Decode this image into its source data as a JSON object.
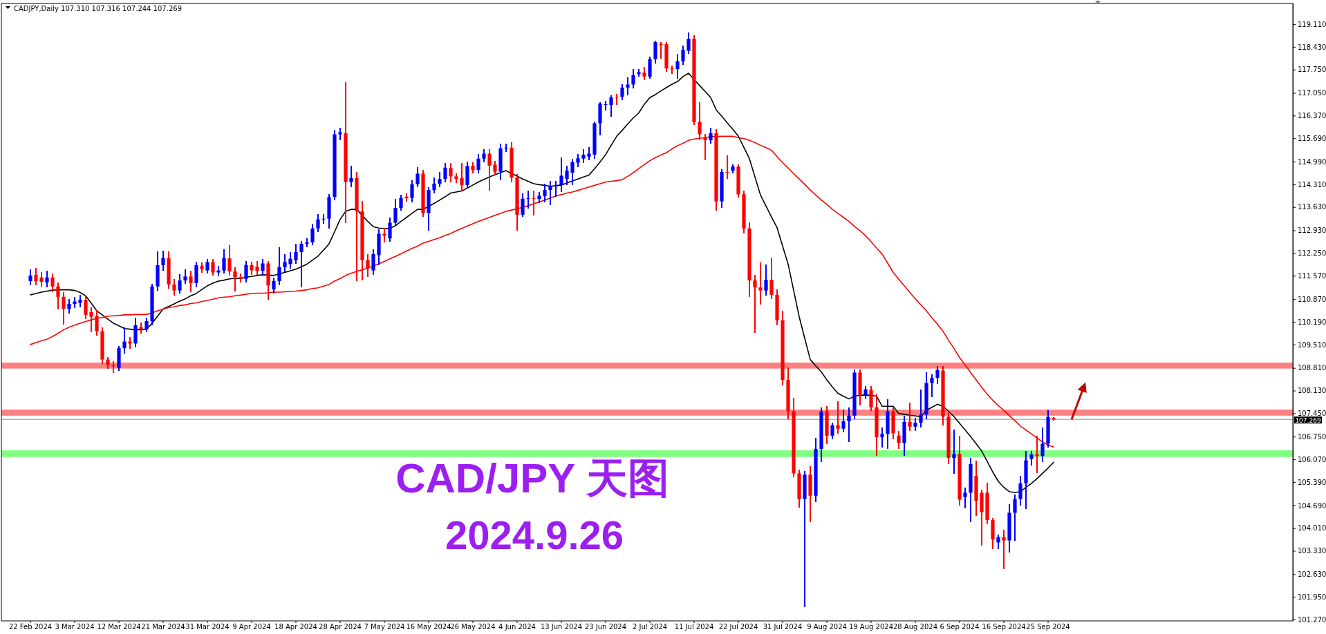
{
  "chart_data": {
    "type": "candlestick",
    "title": "CAD/JPY 天图",
    "subtitle": "2024.9.26",
    "annotations": [
      "CADJPY,Daily 107.310 107.316 107.244 107.269"
    ],
    "categories": [
      "22 Feb 2024",
      null,
      null,
      null,
      null,
      null,
      null,
      null,
      "3 Mar 2024",
      null,
      null,
      null,
      null,
      null,
      null,
      null,
      "12 Mar 2024",
      null,
      null,
      null,
      null,
      null,
      null,
      null,
      "21 Mar 2024",
      null,
      null,
      null,
      null,
      null,
      null,
      null,
      "31 Mar 2024",
      null,
      null,
      null,
      null,
      null,
      null,
      null,
      "9 Apr 2024",
      null,
      null,
      null,
      null,
      null,
      null,
      null,
      "18 Apr 2024",
      null,
      null,
      null,
      null,
      null,
      null,
      null,
      "28 Apr 2024",
      null,
      null,
      null,
      null,
      null,
      null,
      null,
      "7 May 2024",
      null,
      null,
      null,
      null,
      null,
      null,
      null,
      "16 May 2024",
      null,
      null,
      null,
      null,
      null,
      null,
      null,
      "26 May 2024",
      null,
      null,
      null,
      null,
      null,
      null,
      null,
      "4 Jun 2024",
      null,
      null,
      null,
      null,
      null,
      null,
      null,
      "13 Jun 2024",
      null,
      null,
      null,
      null,
      null,
      null,
      null,
      "23 Jun 2024",
      null,
      null,
      null,
      null,
      null,
      null,
      null,
      "2 Jul 2024",
      null,
      null,
      null,
      null,
      null,
      null,
      null,
      "11 Jul 2024",
      null,
      null,
      null,
      null,
      null,
      null,
      null,
      "22 Jul 2024",
      null,
      null,
      null,
      null,
      null,
      null,
      null,
      "31 Jul 2024",
      null,
      null,
      null,
      null,
      null,
      null,
      null,
      "9 Aug 2024",
      null,
      null,
      null,
      null,
      null,
      null,
      null,
      "19 Aug 2024",
      null,
      null,
      null,
      null,
      null,
      null,
      null,
      "28 Aug 2024",
      null,
      null,
      null,
      null,
      null,
      null,
      null,
      "6 Sep 2024",
      null,
      null,
      null,
      null,
      null,
      null,
      null,
      "16 Sep 2024",
      null,
      null,
      null,
      null,
      null,
      null,
      null,
      "25 Sep 2024",
      null
    ],
    "ohlc": [
      [
        111.41,
        111.75,
        111.3,
        111.58
      ],
      [
        111.6,
        111.78,
        111.3,
        111.41
      ],
      [
        111.52,
        111.65,
        111.25,
        111.39
      ],
      [
        111.37,
        111.7,
        111.25,
        111.52
      ],
      [
        111.52,
        111.62,
        111.1,
        111.25
      ],
      [
        111.25,
        111.35,
        110.58,
        110.94
      ],
      [
        110.94,
        111.05,
        110.13,
        110.58
      ],
      [
        110.58,
        110.85,
        110.45,
        110.73
      ],
      [
        110.73,
        110.92,
        110.62,
        110.8
      ],
      [
        110.76,
        110.98,
        110.65,
        110.85
      ],
      [
        110.85,
        110.95,
        110.3,
        110.4
      ],
      [
        110.48,
        110.6,
        109.91,
        110.34
      ],
      [
        110.36,
        110.55,
        109.8,
        109.91
      ],
      [
        109.91,
        110.0,
        108.95,
        109.06
      ],
      [
        109.06,
        109.12,
        108.8,
        108.9
      ],
      [
        108.9,
        109.0,
        108.69,
        108.86
      ],
      [
        108.81,
        109.45,
        108.75,
        109.4
      ],
      [
        109.4,
        110.0,
        109.25,
        109.6
      ],
      [
        109.6,
        109.72,
        109.4,
        109.54
      ],
      [
        109.54,
        110.3,
        109.45,
        110.09
      ],
      [
        110.03,
        110.15,
        109.85,
        109.97
      ],
      [
        109.97,
        110.3,
        109.9,
        110.21
      ],
      [
        110.21,
        111.3,
        110.1,
        111.25
      ],
      [
        111.25,
        112.28,
        111.15,
        111.89
      ],
      [
        111.89,
        112.3,
        111.75,
        112.1
      ],
      [
        112.1,
        112.28,
        111.2,
        111.31
      ],
      [
        111.31,
        111.45,
        111.0,
        111.13
      ],
      [
        111.13,
        111.6,
        111.05,
        111.43
      ],
      [
        111.43,
        111.75,
        111.35,
        111.55
      ],
      [
        111.55,
        111.7,
        111.1,
        111.35
      ],
      [
        111.35,
        111.98,
        111.25,
        111.89
      ],
      [
        111.86,
        111.95,
        111.68,
        111.77
      ],
      [
        111.73,
        112.05,
        111.65,
        111.98
      ],
      [
        111.98,
        112.05,
        111.6,
        111.67
      ],
      [
        111.67,
        111.85,
        111.58,
        111.73
      ],
      [
        111.73,
        112.34,
        111.65,
        112.1
      ],
      [
        112.09,
        112.47,
        111.6,
        111.7
      ],
      [
        111.7,
        111.8,
        111.13,
        111.53
      ],
      [
        111.53,
        111.62,
        111.4,
        111.48
      ],
      [
        111.48,
        112.0,
        111.4,
        111.89
      ],
      [
        111.89,
        111.98,
        111.62,
        111.73
      ],
      [
        111.84,
        112.0,
        111.62,
        111.72
      ],
      [
        111.72,
        112.05,
        111.62,
        111.94
      ],
      [
        111.94,
        112.0,
        110.88,
        111.28
      ],
      [
        111.16,
        111.5,
        111.05,
        111.41
      ],
      [
        111.41,
        112.4,
        111.3,
        111.83
      ],
      [
        111.83,
        112.2,
        111.7,
        111.98
      ],
      [
        111.92,
        112.25,
        111.8,
        112.08
      ],
      [
        112.04,
        112.5,
        111.95,
        112.28
      ],
      [
        112.28,
        112.6,
        111.25,
        112.53
      ],
      [
        112.53,
        112.68,
        112.45,
        112.57
      ],
      [
        112.57,
        113.1,
        112.5,
        112.99
      ],
      [
        112.99,
        113.4,
        112.9,
        113.26
      ],
      [
        113.26,
        113.4,
        113.15,
        113.28
      ],
      [
        113.28,
        114.0,
        113.0,
        113.93
      ],
      [
        113.93,
        115.92,
        113.85,
        115.81
      ],
      [
        115.81,
        115.98,
        115.65,
        115.87
      ],
      [
        115.84,
        117.36,
        113.16,
        114.38
      ],
      [
        114.38,
        114.85,
        114.25,
        114.5
      ],
      [
        114.5,
        114.65,
        111.43,
        113.5
      ],
      [
        113.5,
        113.8,
        111.45,
        112.04
      ],
      [
        112.04,
        112.2,
        111.55,
        111.8
      ],
      [
        111.73,
        112.35,
        111.62,
        112.22
      ],
      [
        112.19,
        112.95,
        111.9,
        112.83
      ],
      [
        112.83,
        112.98,
        112.6,
        112.77
      ],
      [
        112.69,
        113.3,
        112.62,
        113.16
      ],
      [
        113.16,
        113.85,
        113.1,
        113.6
      ],
      [
        113.6,
        113.98,
        113.55,
        113.9
      ],
      [
        113.94,
        114.02,
        113.82,
        113.9
      ],
      [
        113.9,
        114.42,
        113.8,
        114.31
      ],
      [
        114.31,
        114.8,
        114.25,
        114.63
      ],
      [
        114.63,
        114.72,
        113.35,
        113.45
      ],
      [
        113.45,
        114.2,
        112.95,
        114.14
      ],
      [
        114.14,
        114.5,
        114.05,
        114.33
      ],
      [
        114.33,
        114.65,
        114.25,
        114.47
      ],
      [
        114.47,
        114.92,
        114.4,
        114.81
      ],
      [
        114.8,
        114.92,
        114.4,
        114.55
      ],
      [
        114.55,
        114.62,
        114.38,
        114.47
      ],
      [
        114.5,
        114.92,
        114.12,
        114.29
      ],
      [
        114.29,
        114.98,
        114.2,
        114.86
      ],
      [
        114.86,
        114.95,
        114.65,
        114.74
      ],
      [
        114.74,
        115.2,
        114.65,
        115.08
      ],
      [
        115.08,
        115.35,
        115.0,
        115.23
      ],
      [
        115.23,
        115.35,
        114.15,
        114.87
      ],
      [
        114.9,
        115.0,
        114.6,
        114.69
      ],
      [
        114.69,
        115.5,
        114.45,
        115.39
      ],
      [
        115.39,
        115.5,
        115.3,
        115.41
      ],
      [
        115.41,
        115.55,
        114.4,
        114.51
      ],
      [
        114.51,
        114.6,
        112.95,
        113.4
      ],
      [
        113.4,
        114.02,
        113.35,
        113.88
      ],
      [
        113.87,
        114.1,
        113.6,
        113.89
      ],
      [
        113.89,
        114.1,
        113.4,
        113.87
      ],
      [
        113.87,
        114.05,
        113.78,
        113.97
      ],
      [
        113.96,
        114.3,
        113.8,
        114.14
      ],
      [
        114.14,
        114.4,
        113.7,
        114.25
      ],
      [
        114.25,
        114.4,
        113.95,
        114.29
      ],
      [
        114.29,
        115.1,
        114.1,
        114.57
      ],
      [
        114.47,
        114.85,
        114.3,
        114.72
      ],
      [
        114.66,
        115.05,
        114.3,
        114.98
      ],
      [
        114.96,
        115.2,
        114.85,
        115.09
      ],
      [
        115.08,
        115.35,
        114.98,
        115.2
      ],
      [
        115.14,
        115.4,
        115.05,
        115.23
      ],
      [
        115.2,
        116.18,
        115.1,
        116.14
      ],
      [
        116.14,
        116.75,
        115.8,
        116.73
      ],
      [
        116.69,
        116.8,
        116.55,
        116.71
      ],
      [
        116.69,
        116.95,
        116.35,
        116.91
      ],
      [
        116.93,
        117.0,
        116.7,
        116.91
      ],
      [
        116.93,
        117.28,
        116.85,
        117.21
      ],
      [
        117.21,
        117.5,
        117.0,
        117.3
      ],
      [
        117.3,
        117.75,
        117.2,
        117.58
      ],
      [
        117.61,
        117.75,
        117.55,
        117.67
      ],
      [
        117.66,
        117.8,
        117.45,
        117.54
      ],
      [
        117.54,
        118.12,
        117.5,
        118.06
      ],
      [
        118.06,
        118.6,
        117.95,
        118.57
      ],
      [
        118.51,
        118.55,
        118.1,
        118.5
      ],
      [
        118.51,
        118.55,
        117.7,
        117.78
      ],
      [
        117.78,
        117.85,
        117.65,
        117.76
      ],
      [
        117.76,
        118.2,
        117.5,
        118.0
      ],
      [
        118.0,
        118.45,
        117.9,
        118.34
      ],
      [
        118.31,
        118.85,
        118.25,
        118.67
      ],
      [
        118.67,
        118.75,
        116.1,
        116.18
      ],
      [
        116.18,
        116.75,
        115.65,
        115.81
      ],
      [
        115.71,
        115.8,
        115.05,
        115.63
      ],
      [
        115.63,
        115.98,
        115.55,
        115.84
      ],
      [
        115.84,
        115.95,
        113.55,
        113.8
      ],
      [
        113.8,
        114.75,
        113.63,
        114.68
      ],
      [
        114.68,
        115.15,
        114.5,
        114.66
      ],
      [
        114.72,
        114.88,
        114.65,
        114.84
      ],
      [
        114.84,
        114.88,
        113.93,
        114.01
      ],
      [
        114.01,
        114.1,
        112.85,
        112.99
      ],
      [
        112.99,
        113.15,
        110.95,
        111.43
      ],
      [
        111.43,
        111.58,
        109.88,
        111.22
      ],
      [
        111.22,
        111.95,
        110.73,
        111.13
      ],
      [
        111.13,
        111.88,
        111.0,
        111.45
      ],
      [
        111.45,
        112.1,
        110.9,
        111.0
      ],
      [
        111.0,
        111.15,
        110.1,
        110.24
      ],
      [
        110.24,
        110.5,
        108.3,
        108.45
      ],
      [
        108.45,
        108.8,
        107.3,
        107.51
      ],
      [
        107.51,
        107.9,
        105.55,
        105.65
      ],
      [
        105.65,
        105.75,
        104.65,
        104.88
      ],
      [
        104.88,
        105.7,
        101.66,
        105.61
      ],
      [
        105.61,
        105.85,
        104.2,
        104.98
      ],
      [
        104.98,
        106.7,
        104.8,
        106.38
      ],
      [
        106.38,
        107.6,
        106.0,
        107.51
      ],
      [
        107.51,
        107.65,
        106.55,
        106.78
      ],
      [
        106.78,
        107.15,
        106.7,
        107.09
      ],
      [
        107.09,
        107.8,
        106.85,
        106.99
      ],
      [
        106.99,
        107.55,
        106.9,
        107.21
      ],
      [
        107.21,
        107.6,
        106.6,
        107.38
      ],
      [
        107.38,
        108.75,
        107.3,
        108.67
      ],
      [
        108.67,
        108.75,
        107.7,
        108.0
      ],
      [
        108.0,
        108.25,
        107.9,
        108.17
      ],
      [
        108.15,
        108.25,
        107.55,
        107.63
      ],
      [
        107.63,
        108.0,
        106.2,
        106.73
      ],
      [
        106.73,
        107.0,
        106.45,
        106.83
      ],
      [
        106.83,
        107.85,
        106.4,
        107.51
      ],
      [
        107.51,
        107.6,
        106.7,
        106.85
      ],
      [
        106.78,
        106.9,
        106.4,
        106.56
      ],
      [
        106.56,
        107.35,
        106.2,
        107.19
      ],
      [
        107.19,
        107.75,
        106.95,
        107.05
      ],
      [
        107.05,
        107.3,
        106.95,
        107.17
      ],
      [
        107.17,
        108.15,
        107.05,
        107.41
      ],
      [
        107.41,
        108.65,
        107.3,
        108.36
      ],
      [
        108.36,
        108.6,
        107.95,
        108.51
      ],
      [
        108.51,
        108.85,
        108.35,
        108.75
      ],
      [
        108.73,
        108.85,
        107.1,
        107.35
      ],
      [
        107.35,
        107.45,
        105.95,
        106.11
      ],
      [
        106.11,
        106.95,
        105.65,
        106.23
      ],
      [
        106.23,
        106.75,
        104.7,
        104.86
      ],
      [
        104.94,
        105.2,
        104.62,
        105.07
      ],
      [
        105.07,
        106.1,
        104.2,
        105.93
      ],
      [
        105.57,
        106.0,
        104.4,
        104.83
      ],
      [
        105.07,
        105.15,
        103.5,
        104.49
      ],
      [
        105.07,
        105.35,
        104.15,
        104.25
      ],
      [
        104.25,
        104.3,
        103.4,
        103.67
      ],
      [
        103.58,
        103.8,
        103.4,
        103.74
      ],
      [
        103.74,
        103.95,
        102.81,
        103.64
      ],
      [
        103.64,
        104.7,
        103.3,
        104.47
      ],
      [
        104.47,
        105.0,
        103.65,
        104.88
      ],
      [
        104.88,
        105.55,
        104.7,
        105.35
      ],
      [
        105.35,
        106.3,
        104.6,
        106.04
      ],
      [
        106.08,
        106.3,
        105.9,
        106.22
      ],
      [
        106.22,
        106.75,
        105.68,
        106.17
      ],
      [
        106.17,
        107.0,
        106.0,
        106.54
      ],
      [
        106.54,
        107.53,
        106.45,
        107.34
      ],
      [
        107.31,
        107.316,
        107.244,
        107.269
      ]
    ],
    "colors": [
      "#0000ff",
      "#ff0000",
      "#ff0000",
      "#0000ff",
      "#ff0000",
      "#ff0000",
      "#ff0000",
      "#0000ff",
      "#0000ff",
      "#0000ff",
      "#ff0000",
      "#ff0000",
      "#ff0000",
      "#ff0000",
      "#ff0000",
      "#ff0000",
      "#0000ff",
      "#0000ff",
      "#ff0000",
      "#0000ff",
      "#ff0000",
      "#0000ff",
      "#0000ff",
      "#0000ff",
      "#0000ff",
      "#ff0000",
      "#ff0000",
      "#0000ff",
      "#0000ff",
      "#ff0000",
      "#0000ff",
      "#ff0000",
      "#0000ff",
      "#ff0000",
      "#0000ff",
      "#0000ff",
      "#ff0000",
      "#ff0000",
      "#ff0000",
      "#0000ff",
      "#ff0000",
      "#ff0000",
      "#0000ff",
      "#ff0000",
      "#0000ff",
      "#0000ff",
      "#0000ff",
      "#0000ff",
      "#0000ff",
      "#0000ff",
      "#0000ff",
      "#0000ff",
      "#0000ff",
      "#0000ff",
      "#0000ff",
      "#0000ff",
      "#0000ff",
      "#ff0000",
      "#0000ff",
      "#ff0000",
      "#ff0000",
      "#ff0000",
      "#0000ff",
      "#0000ff",
      "#ff0000",
      "#0000ff",
      "#0000ff",
      "#0000ff",
      "#ff0000",
      "#0000ff",
      "#0000ff",
      "#ff0000",
      "#0000ff",
      "#0000ff",
      "#0000ff",
      "#0000ff",
      "#ff0000",
      "#ff0000",
      "#ff0000",
      "#0000ff",
      "#ff0000",
      "#0000ff",
      "#0000ff",
      "#ff0000",
      "#ff0000",
      "#0000ff",
      "#0000ff",
      "#ff0000",
      "#ff0000",
      "#0000ff",
      "#0000ff",
      "#ff0000",
      "#0000ff",
      "#0000ff",
      "#0000ff",
      "#0000ff",
      "#0000ff",
      "#0000ff",
      "#0000ff",
      "#0000ff",
      "#0000ff",
      "#0000ff",
      "#0000ff",
      "#0000ff",
      "#0000ff",
      "#0000ff",
      "#ff0000",
      "#0000ff",
      "#0000ff",
      "#0000ff",
      "#0000ff",
      "#ff0000",
      "#0000ff",
      "#0000ff",
      "#ff0000",
      "#ff0000",
      "#ff0000",
      "#0000ff",
      "#0000ff",
      "#0000ff",
      "#ff0000",
      "#ff0000",
      "#ff0000",
      "#0000ff",
      "#ff0000",
      "#0000ff",
      "#ff0000",
      "#0000ff",
      "#ff0000",
      "#ff0000",
      "#ff0000",
      "#ff0000",
      "#ff0000",
      "#0000ff",
      "#ff0000",
      "#ff0000",
      "#ff0000",
      "#ff0000",
      "#ff0000",
      "#ff0000",
      "#0000ff",
      "#ff0000",
      "#0000ff",
      "#0000ff",
      "#ff0000",
      "#0000ff",
      "#ff0000",
      "#0000ff",
      "#0000ff",
      "#0000ff",
      "#ff0000",
      "#0000ff",
      "#ff0000",
      "#ff0000",
      "#0000ff",
      "#0000ff",
      "#ff0000",
      "#ff0000",
      "#0000ff",
      "#ff0000",
      "#0000ff",
      "#0000ff",
      "#0000ff",
      "#0000ff",
      "#0000ff",
      "#ff0000",
      "#ff0000",
      "#0000ff",
      "#ff0000",
      "#0000ff",
      "#0000ff",
      "#ff0000",
      "#ff0000",
      "#ff0000",
      "#ff0000",
      "#0000ff",
      "#ff0000",
      "#0000ff",
      "#0000ff",
      "#0000ff",
      "#0000ff",
      "#0000ff",
      "#ff0000",
      "#0000ff",
      "#0000ff",
      "#ff0000"
    ],
    "series": [
      {
        "type": "line",
        "color": "#000000",
        "values": [
          111.0,
          111.04,
          111.08,
          111.11,
          111.14,
          111.15,
          111.15,
          111.15,
          111.13,
          111.07,
          110.97,
          110.75,
          110.52,
          110.4,
          110.27,
          110.15,
          110.07,
          109.99,
          109.97,
          109.95,
          109.96,
          109.97,
          110.15,
          110.36,
          110.58,
          110.65,
          110.73,
          110.81,
          110.88,
          110.97,
          111.04,
          111.16,
          111.27,
          111.35,
          111.41,
          111.44,
          111.48,
          111.49,
          111.49,
          111.53,
          111.55,
          111.58,
          111.6,
          111.59,
          111.58,
          111.63,
          111.67,
          111.72,
          111.77,
          111.84,
          111.92,
          112.04,
          112.16,
          112.34,
          112.53,
          112.89,
          113.26,
          113.5,
          113.56,
          113.56,
          113.38,
          113.2,
          113.04,
          113.0,
          112.99,
          112.99,
          113.07,
          113.2,
          113.32,
          113.44,
          113.56,
          113.56,
          113.65,
          113.74,
          113.84,
          113.94,
          114.05,
          114.08,
          114.11,
          114.2,
          114.29,
          114.38,
          114.46,
          114.53,
          114.6,
          114.66,
          114.72,
          114.63,
          114.56,
          114.47,
          114.4,
          114.33,
          114.3,
          114.28,
          114.25,
          114.27,
          114.29,
          114.35,
          114.41,
          114.47,
          114.53,
          114.59,
          114.78,
          114.98,
          115.2,
          115.48,
          115.75,
          115.93,
          116.12,
          116.3,
          116.45,
          116.71,
          116.91,
          117.0,
          117.11,
          117.21,
          117.31,
          117.39,
          117.54,
          117.64,
          117.45,
          117.27,
          117.09,
          116.91,
          116.54,
          116.35,
          116.15,
          115.96,
          115.75,
          115.42,
          115.08,
          114.53,
          113.99,
          113.66,
          113.33,
          113.01,
          112.46,
          111.92,
          111.13,
          110.34,
          109.7,
          109.06,
          108.87,
          108.69,
          108.45,
          108.24,
          108.05,
          107.96,
          107.88,
          107.96,
          107.99,
          108.0,
          107.99,
          107.96,
          107.66,
          107.66,
          107.66,
          107.44,
          107.42,
          107.39,
          107.37,
          107.35,
          107.54,
          107.63,
          107.72,
          107.66,
          107.51,
          107.35,
          107.15,
          106.95,
          106.75,
          106.54,
          106.32,
          106.01,
          105.69,
          105.41,
          105.23,
          105.1,
          105.08,
          105.1,
          105.23,
          105.35,
          105.49,
          105.65,
          105.81,
          105.98
        ]
      },
      {
        "type": "line",
        "color": "#ff0000",
        "values": [
          109.51,
          109.57,
          109.62,
          109.67,
          109.75,
          109.85,
          109.95,
          110.03,
          110.09,
          110.15,
          110.2,
          110.25,
          110.3,
          110.32,
          110.36,
          110.37,
          110.38,
          110.4,
          110.4,
          110.41,
          110.41,
          110.41,
          110.46,
          110.52,
          110.57,
          110.62,
          110.64,
          110.68,
          110.7,
          110.74,
          110.76,
          110.8,
          110.83,
          110.87,
          110.91,
          110.93,
          110.94,
          110.97,
          110.99,
          111.02,
          111.04,
          111.05,
          111.05,
          111.06,
          111.08,
          111.08,
          111.09,
          111.1,
          111.11,
          111.13,
          111.15,
          111.19,
          111.21,
          111.26,
          111.31,
          111.41,
          111.49,
          111.58,
          111.65,
          111.7,
          111.75,
          111.8,
          111.86,
          111.93,
          112.0,
          112.08,
          112.15,
          112.23,
          112.31,
          112.39,
          112.46,
          112.55,
          112.6,
          112.66,
          112.71,
          112.78,
          112.84,
          112.92,
          112.99,
          113.06,
          113.13,
          113.2,
          113.26,
          113.32,
          113.38,
          113.44,
          113.5,
          113.54,
          113.58,
          113.62,
          113.67,
          113.73,
          113.78,
          113.84,
          113.9,
          113.96,
          114.0,
          114.05,
          114.08,
          114.13,
          114.18,
          114.23,
          114.28,
          114.33,
          114.38,
          114.4,
          114.42,
          114.45,
          114.55,
          114.66,
          114.78,
          114.9,
          115.02,
          115.11,
          115.19,
          115.26,
          115.37,
          115.47,
          115.54,
          115.63,
          115.67,
          115.69,
          115.71,
          115.74,
          115.74,
          115.75,
          115.75,
          115.75,
          115.71,
          115.68,
          115.63,
          115.56,
          115.48,
          115.41,
          115.33,
          115.14,
          114.96,
          114.8,
          114.63,
          114.47,
          114.31,
          114.14,
          113.99,
          113.84,
          113.71,
          113.56,
          113.44,
          113.32,
          113.2,
          113.05,
          112.92,
          112.77,
          112.59,
          112.4,
          112.22,
          111.95,
          111.67,
          111.47,
          111.27,
          111.07,
          110.88,
          110.7,
          110.52,
          110.31,
          110.12,
          109.91,
          109.64,
          109.39,
          109.12,
          108.9,
          108.67,
          108.45,
          108.23,
          108.02,
          107.84,
          107.68,
          107.54,
          107.38,
          107.23,
          107.07,
          106.95,
          106.83,
          106.71,
          106.59,
          106.5,
          106.44
        ]
      }
    ],
    "ylim": [
      101.23,
      119.73
    ],
    "yticks": [
      {
        "value": 119.11,
        "label": "119.110"
      },
      {
        "value": 118.43,
        "label": "118.430"
      },
      {
        "value": 117.75,
        "label": "117.750"
      },
      {
        "value": 117.05,
        "label": "117.050"
      },
      {
        "value": 116.37,
        "label": "116.370"
      },
      {
        "value": 115.69,
        "label": "115.690"
      },
      {
        "value": 114.99,
        "label": "114.990"
      },
      {
        "value": 114.31,
        "label": "114.310"
      },
      {
        "value": 113.63,
        "label": "113.630"
      },
      {
        "value": 112.93,
        "label": "112.930"
      },
      {
        "value": 112.25,
        "label": "112.250"
      },
      {
        "value": 111.57,
        "label": "111.570"
      },
      {
        "value": 110.87,
        "label": "110.870"
      },
      {
        "value": 110.19,
        "label": "110.190"
      },
      {
        "value": 109.51,
        "label": "109.510"
      },
      {
        "value": 108.81,
        "label": "108.810"
      },
      {
        "value": 108.13,
        "label": "108.130"
      },
      {
        "value": 107.45,
        "label": "107.450"
      },
      {
        "value": 106.75,
        "label": "106.750"
      },
      {
        "value": 106.07,
        "label": "106.070"
      },
      {
        "value": 105.39,
        "label": "105.390"
      },
      {
        "value": 104.69,
        "label": "104.690"
      },
      {
        "value": 104.01,
        "label": "104.010"
      },
      {
        "value": 103.33,
        "label": "103.330"
      },
      {
        "value": 102.63,
        "label": "102.630"
      },
      {
        "value": 101.95,
        "label": "101.950"
      },
      {
        "value": 101.27,
        "label": "101.270"
      }
    ],
    "bands": [
      {
        "axis": "y",
        "from": 108.79,
        "to": 108.97,
        "color": "#ff8080"
      },
      {
        "axis": "y",
        "from": 107.38,
        "to": 107.56,
        "color": "#ff8080"
      },
      {
        "axis": "y",
        "from": 106.14,
        "to": 106.34,
        "color": "#80ff80"
      }
    ],
    "ref_lines": [
      {
        "axis": "y",
        "value": 107.269,
        "label": "107.269",
        "color": "#8a8a8a"
      }
    ]
  }
}
